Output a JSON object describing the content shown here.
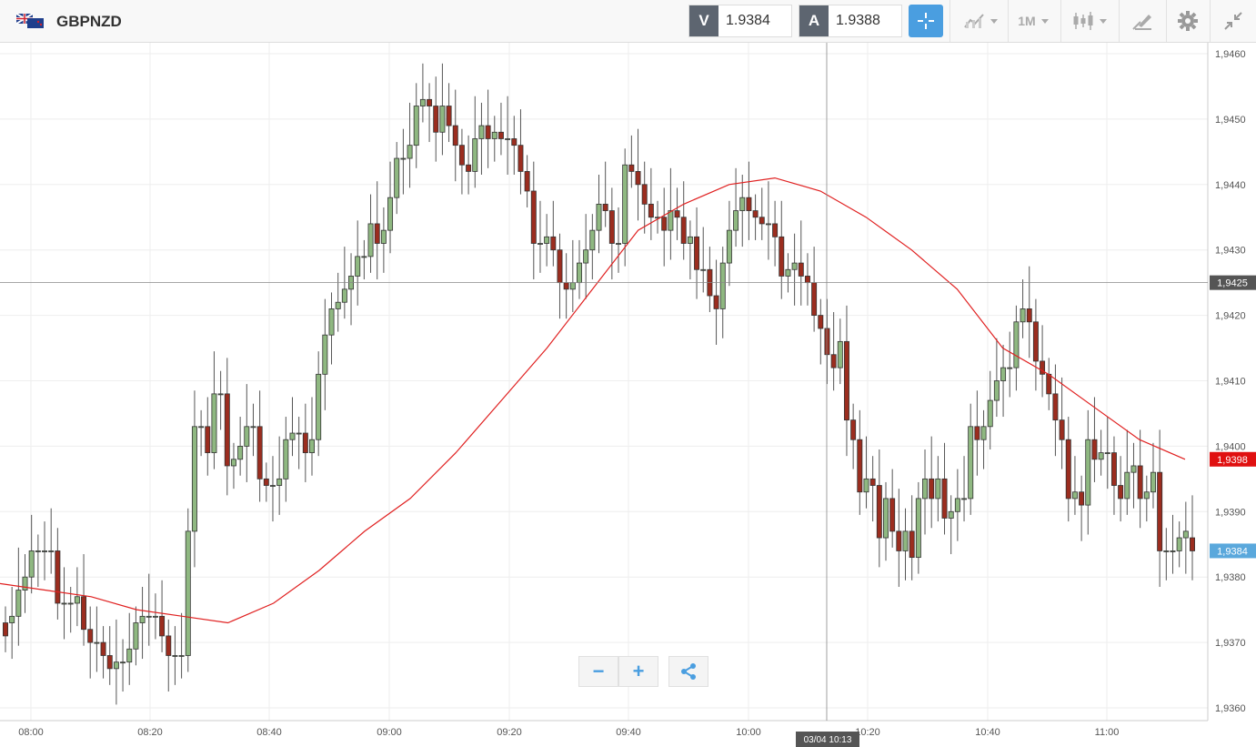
{
  "toolbar": {
    "symbol": "GBPNZD",
    "sell_label": "V",
    "sell_price": "1.9384",
    "buy_label": "A",
    "buy_price": "1.9388",
    "timeframe": "1M",
    "icons": [
      "crosshair-icon",
      "indicators-icon",
      "timeframe-dropdown",
      "candlestick-type-icon",
      "drawing-tools-icon",
      "settings-gear-icon",
      "collapse-icon"
    ]
  },
  "zoom": {
    "minus": "−",
    "plus": "+"
  },
  "colors": {
    "up": "#8fb881",
    "down": "#9b2d1f",
    "ma": "#e02020",
    "accent": "#4a9ee0"
  },
  "chart_data": {
    "type": "candlestick",
    "ylim": [
      1.9358,
      1.9462
    ],
    "y_ticks": [
      "1,9460",
      "1,9450",
      "1,9440",
      "1,9430",
      "1,9420",
      "1,9410",
      "1,9400",
      "1,9390",
      "1,9380",
      "1,9370",
      "1,9360"
    ],
    "y_tick_values": [
      1.946,
      1.945,
      1.944,
      1.943,
      1.942,
      1.941,
      1.94,
      1.939,
      1.938,
      1.937,
      1.936
    ],
    "x_ticks": [
      "08:00",
      "08:20",
      "08:40",
      "09:00",
      "09:20",
      "09:40",
      "10:00",
      "10:20",
      "10:40",
      "11:00"
    ],
    "crosshair": {
      "price_label": "1,9425",
      "price": 1.9425,
      "time_label": "03/04 10:13"
    },
    "ma_label": "1,9398",
    "ma_value": 1.9398,
    "last_label": "1,9384",
    "last_value": 1.9384,
    "series": [
      {
        "name": "",
        "type": "ohlc",
        "o": [
          1.9373,
          1.9373,
          1.9374,
          1.9378,
          1.938,
          1.9384,
          1.9384,
          1.9384,
          1.9384,
          1.9376,
          1.9376,
          1.9376,
          1.9377,
          1.9372,
          1.937,
          1.937,
          1.9368,
          1.9366,
          1.9367,
          1.9367,
          1.9369,
          1.9373,
          1.9374,
          1.9374,
          1.9374,
          1.9371,
          1.9368,
          1.9368,
          1.9368,
          1.9387,
          1.9403,
          1.9403,
          1.9399,
          1.9408,
          1.9408,
          1.9397,
          1.9398,
          1.94,
          1.9403,
          1.9403,
          1.9395,
          1.9394,
          1.9394,
          1.9395,
          1.9401,
          1.9402,
          1.9402,
          1.9399,
          1.9401,
          1.9411,
          1.9417,
          1.9421,
          1.9422,
          1.9424,
          1.9426,
          1.9429,
          1.9429,
          1.9434,
          1.9431,
          1.9433,
          1.9438,
          1.9444,
          1.9444,
          1.9446,
          1.9452,
          1.9453,
          1.9452,
          1.9448,
          1.9452,
          1.9449,
          1.9446,
          1.9443,
          1.9442,
          1.9447,
          1.9449,
          1.9447,
          1.9448,
          1.9447,
          1.9447,
          1.9446,
          1.9442,
          1.9439,
          1.9431,
          1.9431,
          1.9432,
          1.943,
          1.9425,
          1.9424,
          1.9425,
          1.9428,
          1.943,
          1.9433,
          1.9437,
          1.9436,
          1.9431,
          1.9431,
          1.9443,
          1.9442,
          1.944,
          1.9437,
          1.9435,
          1.9435,
          1.9433,
          1.9436,
          1.9435,
          1.9431,
          1.9432,
          1.9427,
          1.9427,
          1.9423,
          1.9421,
          1.9428,
          1.9433,
          1.9436,
          1.9438,
          1.9436,
          1.9435,
          1.9434,
          1.9434,
          1.9432,
          1.9426,
          1.9427,
          1.9428,
          1.9426,
          1.9425,
          1.942,
          1.9418,
          1.9414,
          1.9412,
          1.9416,
          1.9404,
          1.9401,
          1.9393,
          1.9395,
          1.9394,
          1.9386,
          1.9392,
          1.9387,
          1.9384,
          1.9387,
          1.9383,
          1.9392,
          1.9395,
          1.9392,
          1.9395,
          1.9389,
          1.939,
          1.9392,
          1.9392,
          1.9403,
          1.9401,
          1.9403,
          1.9407,
          1.941,
          1.9412,
          1.9412,
          1.9419,
          1.9421,
          1.9419,
          1.9413,
          1.9411,
          1.9408,
          1.9404,
          1.9401,
          1.9392,
          1.9393,
          1.9391,
          1.9401,
          1.9398,
          1.9399,
          1.9399,
          1.9394,
          1.9392,
          1.9396,
          1.9397,
          1.9392,
          1.9393,
          1.9396,
          1.9384,
          1.9384,
          1.9384,
          1.9386,
          1.9386
        ],
        "c": [
          1.9371,
          1.9374,
          1.9378,
          1.938,
          1.9384,
          1.9384,
          1.9384,
          1.9384,
          1.9376,
          1.9376,
          1.9376,
          1.9377,
          1.9372,
          1.937,
          1.937,
          1.9368,
          1.9366,
          1.9367,
          1.9367,
          1.9369,
          1.9373,
          1.9374,
          1.9374,
          1.9374,
          1.9371,
          1.9368,
          1.9368,
          1.9368,
          1.9387,
          1.9403,
          1.9403,
          1.9399,
          1.9408,
          1.9408,
          1.9397,
          1.9398,
          1.94,
          1.9403,
          1.9403,
          1.9395,
          1.9394,
          1.9394,
          1.9395,
          1.9401,
          1.9402,
          1.9402,
          1.9399,
          1.9401,
          1.9411,
          1.9417,
          1.9421,
          1.9422,
          1.9424,
          1.9426,
          1.9429,
          1.9429,
          1.9434,
          1.9431,
          1.9433,
          1.9438,
          1.9444,
          1.9444,
          1.9446,
          1.9452,
          1.9453,
          1.9452,
          1.9448,
          1.9452,
          1.9449,
          1.9446,
          1.9443,
          1.9442,
          1.9447,
          1.9449,
          1.9447,
          1.9448,
          1.9447,
          1.9447,
          1.9446,
          1.9442,
          1.9439,
          1.9431,
          1.9431,
          1.9432,
          1.943,
          1.9425,
          1.9424,
          1.9425,
          1.9428,
          1.943,
          1.9433,
          1.9437,
          1.9436,
          1.9431,
          1.9431,
          1.9443,
          1.9442,
          1.944,
          1.9437,
          1.9435,
          1.9435,
          1.9433,
          1.9436,
          1.9435,
          1.9431,
          1.9432,
          1.9427,
          1.9427,
          1.9423,
          1.9421,
          1.9428,
          1.9433,
          1.9436,
          1.9438,
          1.9436,
          1.9435,
          1.9434,
          1.9434,
          1.9432,
          1.9426,
          1.9427,
          1.9428,
          1.9426,
          1.9425,
          1.942,
          1.9418,
          1.9414,
          1.9412,
          1.9416,
          1.9404,
          1.9401,
          1.9393,
          1.9395,
          1.9394,
          1.9386,
          1.9392,
          1.9387,
          1.9384,
          1.9387,
          1.9383,
          1.9392,
          1.9395,
          1.9392,
          1.9395,
          1.9389,
          1.939,
          1.9392,
          1.9392,
          1.9403,
          1.9401,
          1.9403,
          1.9407,
          1.941,
          1.9412,
          1.9412,
          1.9419,
          1.9421,
          1.9419,
          1.9413,
          1.9411,
          1.9408,
          1.9404,
          1.9401,
          1.9392,
          1.9393,
          1.9391,
          1.9401,
          1.9398,
          1.9399,
          1.9399,
          1.9394,
          1.9392,
          1.9396,
          1.9397,
          1.9392,
          1.9393,
          1.9396,
          1.9384,
          1.9384,
          1.9384,
          1.9386,
          1.9387,
          1.9384
        ],
        "ma": [
          1.9379,
          1.9378,
          1.9377,
          1.9375,
          1.9374,
          1.9373,
          1.9376,
          1.9381,
          1.9387,
          1.9392,
          1.9399,
          1.9407,
          1.9415,
          1.9424,
          1.9433,
          1.9437,
          1.944,
          1.9441,
          1.9439,
          1.9435,
          1.943,
          1.9424,
          1.9415,
          1.9411,
          1.9406,
          1.9401,
          1.9398
        ]
      }
    ]
  }
}
